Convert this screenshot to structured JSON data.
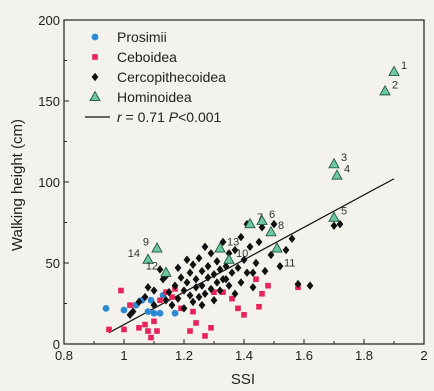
{
  "chart_data": {
    "type": "scatter",
    "title": "",
    "xlabel": "SSI",
    "ylabel": "Walking height (cm)",
    "xlim": [
      0.8,
      2.0
    ],
    "ylim": [
      0,
      200
    ],
    "xticks": [
      "0.8",
      "1",
      "1.2",
      "1.4",
      "1.6",
      "1.8",
      "2"
    ],
    "yticks": [
      "0",
      "50",
      "100",
      "150",
      "200"
    ],
    "grid": false,
    "legend_position": "top-left",
    "regression": {
      "label": "r = 0.71  P<0.001",
      "r_text": "r",
      "eq_text": " = 0.71",
      "p_text": "P",
      "p_eq_text": "<0.001",
      "x": [
        0.95,
        1.9
      ],
      "y": [
        7,
        102
      ]
    },
    "series": [
      {
        "name": "Prosimii",
        "marker": "circle",
        "color": "#2a8ad4",
        "points": [
          [
            0.94,
            22
          ],
          [
            1.0,
            21
          ],
          [
            1.04,
            24
          ],
          [
            1.06,
            27
          ],
          [
            1.08,
            20
          ],
          [
            1.1,
            19
          ],
          [
            1.09,
            27
          ],
          [
            1.12,
            19
          ],
          [
            1.13,
            30
          ],
          [
            1.17,
            19
          ]
        ]
      },
      {
        "name": "Ceboidea",
        "marker": "square",
        "color": "#e6245a",
        "points": [
          [
            0.95,
            9
          ],
          [
            0.99,
            33
          ],
          [
            1.0,
            9
          ],
          [
            1.02,
            24
          ],
          [
            1.05,
            10
          ],
          [
            1.07,
            12
          ],
          [
            1.08,
            8
          ],
          [
            1.1,
            14
          ],
          [
            1.09,
            4
          ],
          [
            1.12,
            27
          ],
          [
            1.11,
            8
          ],
          [
            1.14,
            32
          ],
          [
            1.16,
            29
          ],
          [
            1.17,
            34
          ],
          [
            1.19,
            22
          ],
          [
            1.22,
            8
          ],
          [
            1.23,
            20
          ],
          [
            1.24,
            13
          ],
          [
            1.27,
            5
          ],
          [
            1.29,
            10
          ],
          [
            1.3,
            32
          ],
          [
            1.33,
            32
          ],
          [
            1.36,
            28
          ],
          [
            1.38,
            22
          ],
          [
            1.4,
            18
          ],
          [
            1.44,
            40
          ],
          [
            1.46,
            31
          ],
          [
            1.48,
            36
          ],
          [
            1.45,
            23
          ],
          [
            1.58,
            35
          ]
        ]
      },
      {
        "name": "Cercopithecoidea",
        "marker": "diamond",
        "color": "#111111",
        "points": [
          [
            1.02,
            18
          ],
          [
            1.03,
            20
          ],
          [
            1.05,
            26
          ],
          [
            1.07,
            29
          ],
          [
            1.08,
            35
          ],
          [
            1.1,
            33
          ],
          [
            1.12,
            46
          ],
          [
            1.13,
            40
          ],
          [
            1.14,
            27
          ],
          [
            1.15,
            32
          ],
          [
            1.16,
            24
          ],
          [
            1.17,
            36
          ],
          [
            1.18,
            47
          ],
          [
            1.18,
            28
          ],
          [
            1.19,
            41
          ],
          [
            1.2,
            33
          ],
          [
            1.2,
            22
          ],
          [
            1.21,
            38
          ],
          [
            1.22,
            44
          ],
          [
            1.22,
            30
          ],
          [
            1.23,
            49
          ],
          [
            1.23,
            26
          ],
          [
            1.24,
            35
          ],
          [
            1.24,
            40
          ],
          [
            1.25,
            53
          ],
          [
            1.25,
            29
          ],
          [
            1.26,
            45
          ],
          [
            1.26,
            36
          ],
          [
            1.27,
            31
          ],
          [
            1.27,
            60
          ],
          [
            1.28,
            41
          ],
          [
            1.28,
            48
          ],
          [
            1.29,
            34
          ],
          [
            1.29,
            56
          ],
          [
            1.3,
            43
          ],
          [
            1.3,
            27
          ],
          [
            1.31,
            38
          ],
          [
            1.31,
            51
          ],
          [
            1.32,
            46
          ],
          [
            1.32,
            33
          ],
          [
            1.33,
            63
          ],
          [
            1.33,
            40
          ],
          [
            1.34,
            48
          ],
          [
            1.35,
            36
          ],
          [
            1.35,
            56
          ],
          [
            1.36,
            44
          ],
          [
            1.37,
            58
          ],
          [
            1.37,
            31
          ],
          [
            1.38,
            47
          ],
          [
            1.39,
            66
          ],
          [
            1.39,
            38
          ],
          [
            1.4,
            52
          ],
          [
            1.41,
            74
          ],
          [
            1.41,
            44
          ],
          [
            1.42,
            60
          ],
          [
            1.43,
            35
          ],
          [
            1.44,
            50
          ],
          [
            1.45,
            63
          ],
          [
            1.46,
            72
          ],
          [
            1.47,
            45
          ],
          [
            1.49,
            55
          ],
          [
            1.5,
            74
          ],
          [
            1.52,
            48
          ],
          [
            1.54,
            58
          ],
          [
            1.56,
            65
          ],
          [
            1.58,
            37
          ],
          [
            1.62,
            36
          ],
          [
            1.7,
            73
          ],
          [
            1.72,
            74
          ],
          [
            1.1,
            24
          ],
          [
            1.14,
            42
          ],
          [
            1.21,
            52
          ],
          [
            1.26,
            24
          ],
          [
            1.34,
            40
          ],
          [
            1.43,
            44
          ]
        ]
      },
      {
        "name": "Hominoidea",
        "marker": "triangle",
        "color": "#6fc7a0",
        "points": [
          {
            "x": 1.9,
            "y": 168,
            "label": "1"
          },
          {
            "x": 1.87,
            "y": 156,
            "label": "2"
          },
          {
            "x": 1.7,
            "y": 111,
            "label": "3"
          },
          {
            "x": 1.71,
            "y": 104,
            "label": "4"
          },
          {
            "x": 1.7,
            "y": 78,
            "label": "5"
          },
          {
            "x": 1.46,
            "y": 76,
            "label": "6"
          },
          {
            "x": 1.42,
            "y": 74,
            "label": "7"
          },
          {
            "x": 1.49,
            "y": 69,
            "label": "8"
          },
          {
            "x": 1.11,
            "y": 59,
            "label": "9"
          },
          {
            "x": 1.35,
            "y": 52,
            "label": "10"
          },
          {
            "x": 1.51,
            "y": 59,
            "label": "11"
          },
          {
            "x": 1.14,
            "y": 44,
            "label": "12"
          },
          {
            "x": 1.32,
            "y": 59,
            "label": "13"
          },
          {
            "x": 1.08,
            "y": 52,
            "label": "14"
          }
        ]
      }
    ]
  }
}
